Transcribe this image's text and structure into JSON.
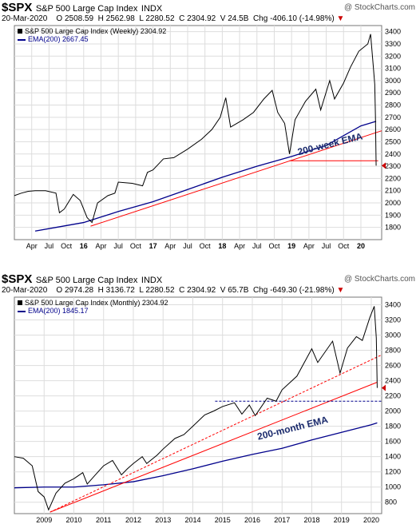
{
  "top": {
    "symbol": "$SPX",
    "name": "S&P 500 Large Cap Index",
    "exchange": "INDX",
    "watermark": "@ StockCharts.com",
    "date": "20-Mar-2020",
    "o": "O 2508.59",
    "h": "H 2562.98",
    "l": "L 2280.52",
    "c": "C 2304.92",
    "v": "V 24.5B",
    "chg": "Chg -406.10 (-14.98%)",
    "legend_main": "S&P 500 Large Cap Index (Weekly) 2304.92",
    "legend_ema": "EMA(200) 2667.45"
  },
  "bottom": {
    "symbol": "$SPX",
    "name": "S&P 500 Large Cap Index",
    "exchange": "INDX",
    "watermark": "@ StockCharts.com",
    "date": "20-Mar-2020",
    "o": "O 2974.28",
    "h": "H 3136.72",
    "l": "L 2280.52",
    "c": "C 2304.92",
    "v": "V 65.7B",
    "chg": "Chg -649.30 (-21.98%)",
    "legend_main": "S&P 500 Large Cap Index (Monthly) 2304.92",
    "legend_ema": "EMA(200) 1845.17"
  },
  "colors": {
    "price": "#000000",
    "ema": "#00008b",
    "trend": "#ff0000",
    "grid": "#dddddd",
    "accent": "#cc0000"
  },
  "chart_data": [
    {
      "type": "line",
      "title": "S&P 500 Large Cap Index (Weekly)",
      "ylim": [
        1700,
        3450
      ],
      "yticks": [
        1800,
        1900,
        2000,
        2100,
        2200,
        2300,
        2400,
        2500,
        2600,
        2700,
        2800,
        2900,
        3000,
        3100,
        3200,
        3300,
        3400
      ],
      "xticks": [
        {
          "label": "Apr",
          "t": 2015.25
        },
        {
          "label": "Jul",
          "t": 2015.5
        },
        {
          "label": "Oct",
          "t": 2015.75
        },
        {
          "label": "16",
          "t": 2016.0,
          "bold": true
        },
        {
          "label": "Apr",
          "t": 2016.25
        },
        {
          "label": "Jul",
          "t": 2016.5
        },
        {
          "label": "Oct",
          "t": 2016.75
        },
        {
          "label": "17",
          "t": 2017.0,
          "bold": true
        },
        {
          "label": "Apr",
          "t": 2017.25
        },
        {
          "label": "Jul",
          "t": 2017.5
        },
        {
          "label": "Oct",
          "t": 2017.75
        },
        {
          "label": "18",
          "t": 2018.0,
          "bold": true
        },
        {
          "label": "Apr",
          "t": 2018.25
        },
        {
          "label": "Jul",
          "t": 2018.5
        },
        {
          "label": "Oct",
          "t": 2018.75
        },
        {
          "label": "19",
          "t": 2019.0,
          "bold": true
        },
        {
          "label": "Apr",
          "t": 2019.25
        },
        {
          "label": "Jul",
          "t": 2019.5
        },
        {
          "label": "Oct",
          "t": 2019.75
        },
        {
          "label": "20",
          "t": 2020.0,
          "bold": true
        }
      ],
      "xlim": [
        2015.0,
        2020.3
      ],
      "price": [
        [
          2015.0,
          2060
        ],
        [
          2015.1,
          2080
        ],
        [
          2015.2,
          2095
        ],
        [
          2015.3,
          2100
        ],
        [
          2015.45,
          2100
        ],
        [
          2015.6,
          2080
        ],
        [
          2015.65,
          1920
        ],
        [
          2015.72,
          1950
        ],
        [
          2015.85,
          2070
        ],
        [
          2015.95,
          2020
        ],
        [
          2016.05,
          1880
        ],
        [
          2016.12,
          1840
        ],
        [
          2016.2,
          2000
        ],
        [
          2016.35,
          2060
        ],
        [
          2016.45,
          2080
        ],
        [
          2016.5,
          2170
        ],
        [
          2016.7,
          2160
        ],
        [
          2016.85,
          2140
        ],
        [
          2016.92,
          2250
        ],
        [
          2017.0,
          2270
        ],
        [
          2017.15,
          2360
        ],
        [
          2017.3,
          2370
        ],
        [
          2017.5,
          2440
        ],
        [
          2017.7,
          2520
        ],
        [
          2017.85,
          2600
        ],
        [
          2017.97,
          2700
        ],
        [
          2018.05,
          2860
        ],
        [
          2018.12,
          2620
        ],
        [
          2018.3,
          2680
        ],
        [
          2018.45,
          2740
        ],
        [
          2018.6,
          2850
        ],
        [
          2018.72,
          2920
        ],
        [
          2018.8,
          2740
        ],
        [
          2018.9,
          2650
        ],
        [
          2018.97,
          2400
        ],
        [
          2019.05,
          2680
        ],
        [
          2019.2,
          2830
        ],
        [
          2019.35,
          2930
        ],
        [
          2019.42,
          2760
        ],
        [
          2019.55,
          3000
        ],
        [
          2019.62,
          2850
        ],
        [
          2019.75,
          2980
        ],
        [
          2019.85,
          3110
        ],
        [
          2019.97,
          3240
        ],
        [
          2020.1,
          3300
        ],
        [
          2020.14,
          3380
        ],
        [
          2020.18,
          3110
        ],
        [
          2020.2,
          2970
        ],
        [
          2020.21,
          2710
        ],
        [
          2020.22,
          2305
        ]
      ],
      "ema": [
        [
          2015.3,
          1770
        ],
        [
          2015.6,
          1800
        ],
        [
          2016.0,
          1840
        ],
        [
          2016.5,
          1930
        ],
        [
          2017.0,
          2010
        ],
        [
          2017.5,
          2110
        ],
        [
          2018.0,
          2210
        ],
        [
          2018.5,
          2300
        ],
        [
          2019.0,
          2380
        ],
        [
          2019.5,
          2470
        ],
        [
          2020.0,
          2630
        ],
        [
          2020.22,
          2667
        ]
      ],
      "trendlines": [
        {
          "from": [
            2016.1,
            1810
          ],
          "to": [
            2020.3,
            2590
          ]
        },
        {
          "from": [
            2018.97,
            2345
          ],
          "to": [
            2020.25,
            2345
          ]
        }
      ],
      "annotation": {
        "text": "200-week EMA",
        "t": 2019.1,
        "v": 2390
      }
    },
    {
      "type": "line",
      "title": "S&P 500 Large Cap Index (Monthly)",
      "ylim": [
        650,
        3500
      ],
      "yticks": [
        800,
        1000,
        1200,
        1400,
        1600,
        1800,
        2000,
        2200,
        2400,
        2600,
        2800,
        3000,
        3200,
        3400
      ],
      "xticks": [
        {
          "label": "2009",
          "t": 2009.0
        },
        {
          "label": "2010",
          "t": 2010.0
        },
        {
          "label": "2011",
          "t": 2011.0
        },
        {
          "label": "2012",
          "t": 2012.0
        },
        {
          "label": "2013",
          "t": 2013.0
        },
        {
          "label": "2014",
          "t": 2014.0
        },
        {
          "label": "2015",
          "t": 2015.0
        },
        {
          "label": "2016",
          "t": 2016.0
        },
        {
          "label": "2017",
          "t": 2017.0
        },
        {
          "label": "2018",
          "t": 2018.0
        },
        {
          "label": "2019",
          "t": 2019.0
        },
        {
          "label": "2020",
          "t": 2020.0
        }
      ],
      "xlim": [
        2008.0,
        2020.35
      ],
      "price": [
        [
          2008.0,
          1400
        ],
        [
          2008.3,
          1380
        ],
        [
          2008.6,
          1280
        ],
        [
          2008.8,
          940
        ],
        [
          2009.0,
          870
        ],
        [
          2009.15,
          700
        ],
        [
          2009.4,
          920
        ],
        [
          2009.7,
          1050
        ],
        [
          2010.0,
          1110
        ],
        [
          2010.3,
          1190
        ],
        [
          2010.45,
          1040
        ],
        [
          2010.7,
          1150
        ],
        [
          2011.0,
          1280
        ],
        [
          2011.3,
          1350
        ],
        [
          2011.6,
          1160
        ],
        [
          2011.8,
          1240
        ],
        [
          2012.0,
          1310
        ],
        [
          2012.3,
          1400
        ],
        [
          2012.45,
          1310
        ],
        [
          2012.8,
          1420
        ],
        [
          2013.0,
          1500
        ],
        [
          2013.4,
          1640
        ],
        [
          2013.7,
          1690
        ],
        [
          2014.0,
          1800
        ],
        [
          2014.4,
          1950
        ],
        [
          2014.7,
          2000
        ],
        [
          2015.0,
          2060
        ],
        [
          2015.4,
          2110
        ],
        [
          2015.65,
          1960
        ],
        [
          2015.9,
          2080
        ],
        [
          2016.1,
          1940
        ],
        [
          2016.5,
          2170
        ],
        [
          2016.8,
          2130
        ],
        [
          2017.0,
          2280
        ],
        [
          2017.5,
          2460
        ],
        [
          2018.0,
          2820
        ],
        [
          2018.2,
          2640
        ],
        [
          2018.7,
          2920
        ],
        [
          2018.95,
          2500
        ],
        [
          2019.2,
          2830
        ],
        [
          2019.5,
          2980
        ],
        [
          2019.7,
          2930
        ],
        [
          2019.95,
          3230
        ],
        [
          2020.1,
          3380
        ],
        [
          2020.17,
          2960
        ],
        [
          2020.2,
          2305
        ]
      ],
      "ema": [
        [
          2008.0,
          990
        ],
        [
          2009.0,
          1000
        ],
        [
          2010.0,
          1000
        ],
        [
          2011.0,
          1030
        ],
        [
          2012.0,
          1070
        ],
        [
          2013.0,
          1150
        ],
        [
          2014.0,
          1240
        ],
        [
          2015.0,
          1340
        ],
        [
          2016.0,
          1430
        ],
        [
          2017.0,
          1510
        ],
        [
          2018.0,
          1620
        ],
        [
          2019.0,
          1720
        ],
        [
          2020.0,
          1820
        ],
        [
          2020.2,
          1845
        ]
      ],
      "trendlines": [
        {
          "from": [
            2009.2,
            670
          ],
          "to": [
            2020.35,
            2740
          ],
          "dash": true
        },
        {
          "from": [
            2009.2,
            670
          ],
          "to": [
            2020.2,
            2380
          ]
        },
        {
          "from": [
            2014.75,
            2130
          ],
          "to": [
            2020.35,
            2130
          ],
          "dash": true,
          "color": "#00008b"
        }
      ],
      "annotation": {
        "text": "200-month EMA",
        "t": 2016.2,
        "v": 1620
      }
    }
  ]
}
